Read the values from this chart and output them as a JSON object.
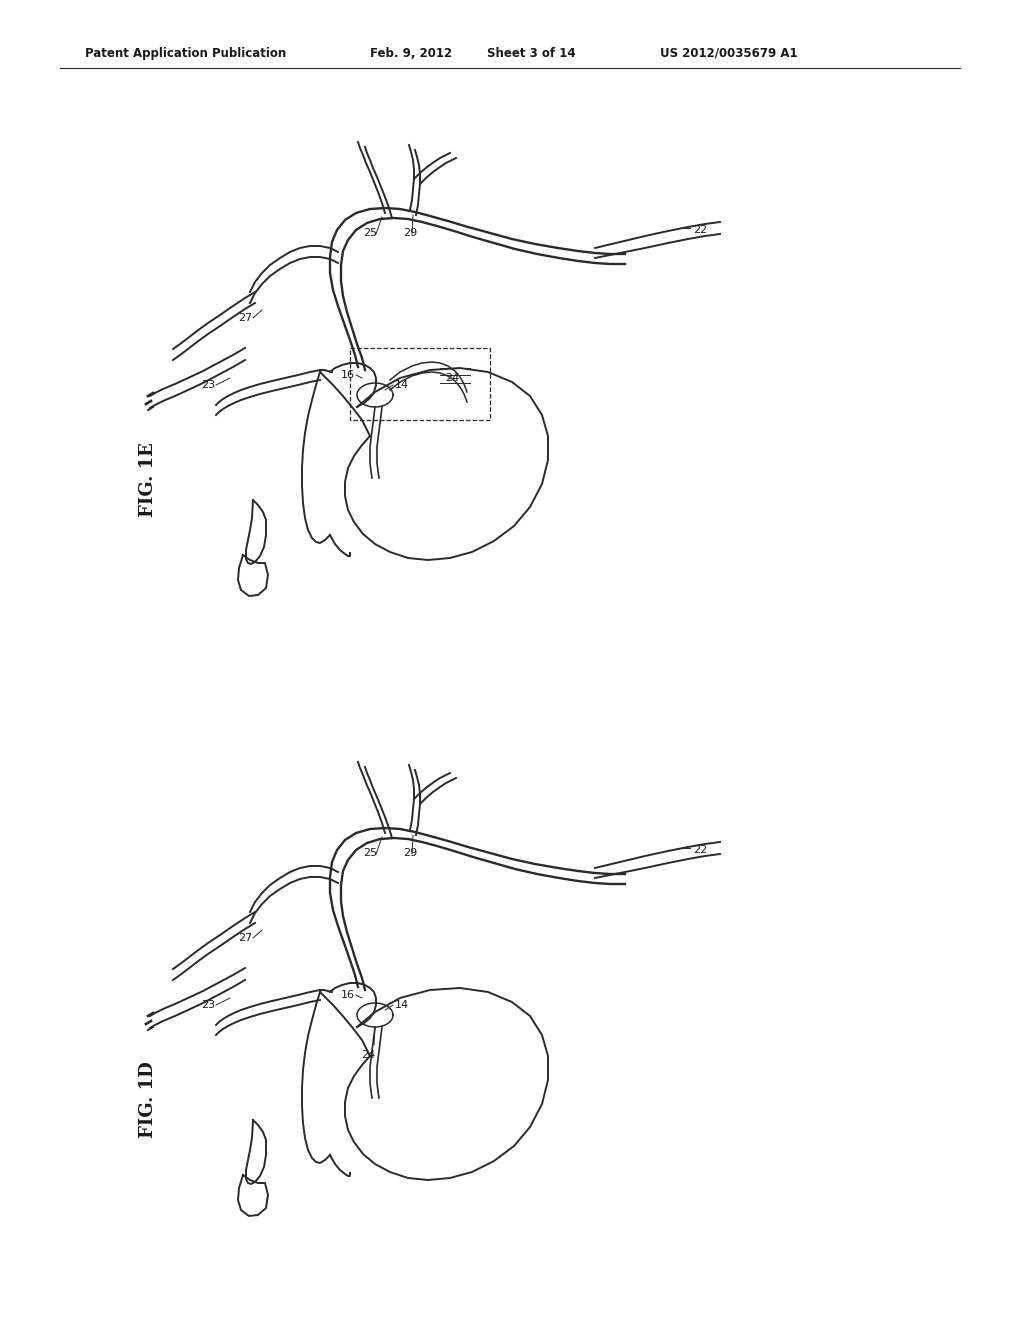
{
  "background_color": "#ffffff",
  "line_color": "#2a2a2a",
  "text_color": "#1a1a1a",
  "header_text": "Patent Application Publication",
  "header_date": "Feb. 9, 2012",
  "header_sheet": "Sheet 3 of 14",
  "header_patent": "US 2012/0035679 A1",
  "fig1e_label": "FIG. 1E",
  "fig1d_label": "FIG. 1D"
}
